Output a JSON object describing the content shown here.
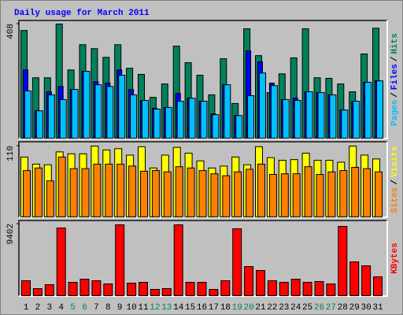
{
  "chart_data": [
    {
      "type": "bar",
      "title": "Daily usage for March 2011",
      "categories": [
        "1",
        "2",
        "3",
        "4",
        "5",
        "6",
        "7",
        "8",
        "9",
        "10",
        "11",
        "12",
        "13",
        "14",
        "15",
        "16",
        "17",
        "18",
        "19",
        "20",
        "21",
        "22",
        "23",
        "24",
        "25",
        "26",
        "27",
        "28",
        "29",
        "30",
        "31"
      ],
      "category_colors": [
        "#000000",
        "#000000",
        "#000000",
        "#000000",
        "#00805c",
        "#00805c",
        "#000000",
        "#000000",
        "#000000",
        "#000000",
        "#000000",
        "#00805c",
        "#00805c",
        "#000000",
        "#000000",
        "#000000",
        "#000000",
        "#000000",
        "#00805c",
        "#00805c",
        "#000000",
        "#000000",
        "#000000",
        "#000000",
        "#000000",
        "#00805c",
        "#00805c",
        "#000000",
        "#000000",
        "#000000",
        "#000000"
      ],
      "legend_separator": "/",
      "ylim": [
        0,
        408
      ],
      "yticks": [
        408
      ],
      "series": [
        {
          "name": "Hits",
          "color": "#00805c",
          "values": [
            385,
            216,
            216,
            408,
            244,
            334,
            320,
            289,
            334,
            250,
            228,
            146,
            194,
            329,
            270,
            225,
            155,
            284,
            124,
            391,
            295,
            163,
            230,
            287,
            391,
            216,
            214,
            194,
            166,
            301,
            393
          ]
        },
        {
          "name": "Files",
          "color": "#0000ff",
          "values": [
            244,
            98,
            166,
            185,
            174,
            239,
            202,
            197,
            244,
            174,
            135,
            107,
            110,
            160,
            143,
            132,
            87,
            191,
            81,
            312,
            273,
            197,
            138,
            143,
            166,
            163,
            155,
            101,
            132,
            200,
            205
          ]
        },
        {
          "name": "Pages",
          "color": "#00c0ff",
          "values": [
            169,
            98,
            155,
            138,
            174,
            239,
            191,
            185,
            225,
            155,
            135,
            104,
            110,
            132,
            143,
            132,
            84,
            191,
            81,
            152,
            233,
            188,
            138,
            135,
            166,
            163,
            155,
            101,
            132,
            200,
            205
          ]
        }
      ]
    },
    {
      "type": "bar",
      "legend_separator": "/",
      "ylim": [
        0,
        110
      ],
      "yticks": [
        110
      ],
      "series": [
        {
          "name": "Visits",
          "color": "#ffff00",
          "values": [
            93,
            82,
            81,
            101,
            98,
            98,
            110,
            104,
            106,
            96,
            109,
            76,
            96,
            108,
            99,
            87,
            76,
            79,
            93,
            81,
            109,
            92,
            88,
            89,
            99,
            88,
            88,
            85,
            110,
            96,
            90
          ]
        },
        {
          "name": "Sites",
          "color": "#ff8000",
          "values": [
            72,
            76,
            56,
            93,
            75,
            75,
            82,
            82,
            82,
            79,
            71,
            72,
            70,
            78,
            76,
            72,
            67,
            64,
            70,
            74,
            82,
            66,
            67,
            67,
            78,
            66,
            70,
            72,
            77,
            75,
            70
          ]
        }
      ]
    },
    {
      "type": "bar",
      "ylim": [
        0,
        9402
      ],
      "yticks": [
        9402
      ],
      "series": [
        {
          "name": "KBytes",
          "color": "#ff0000",
          "values": [
            1964,
            930,
            1447,
            8886,
            1757,
            2170,
            1964,
            1550,
            9300,
            1653,
            1757,
            826,
            930,
            9300,
            1757,
            1757,
            826,
            1964,
            8782,
            3823,
            3307,
            1964,
            1757,
            2170,
            1757,
            1860,
            1550,
            9093,
            4443,
            3927,
            2480
          ]
        }
      ]
    }
  ]
}
